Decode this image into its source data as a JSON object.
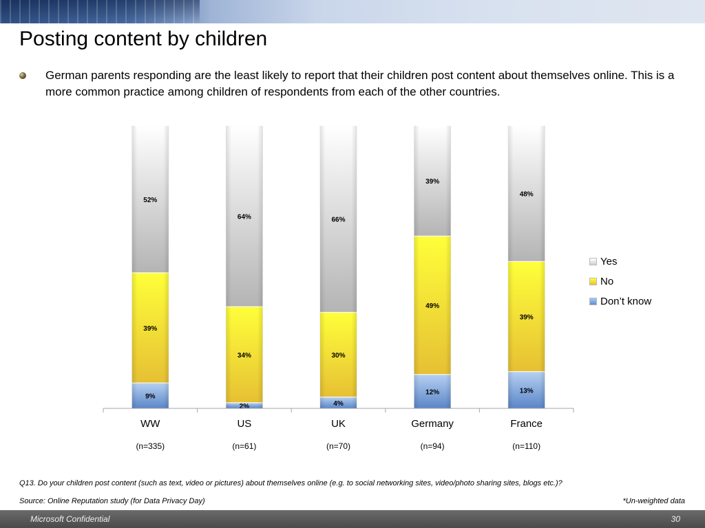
{
  "slide": {
    "title": "Posting content by children",
    "bullet": "German parents responding are the least likely to report that their children post content about themselves online. This is a more common practice among children of respondents from each of the other countries.",
    "question": "Q13. Do your children post content (such as text, video or pictures) about themselves online (e.g. to social networking sites, video/photo sharing sites, blogs etc.)?",
    "source": "Source: Online Reputation study (for Data Privacy Day)",
    "note": "*Un-weighted data",
    "footer_left": "Microsoft Confidential",
    "page_number": "30"
  },
  "chart_data": {
    "type": "bar",
    "stacked": true,
    "percent_stacked": true,
    "categories": [
      "WW",
      "US",
      "UK",
      "Germany",
      "France"
    ],
    "sample_sizes": [
      "(n=335)",
      "(n=61)",
      "(n=70)",
      "(n=94)",
      "(n=110)"
    ],
    "series": [
      {
        "name": "Don’t know",
        "values": [
          9,
          2,
          4,
          12,
          13
        ],
        "labels": [
          "9%",
          "2%",
          "4%",
          "12%",
          "13%"
        ],
        "color": "#6f9ad8"
      },
      {
        "name": "No",
        "values": [
          39,
          34,
          30,
          49,
          39
        ],
        "labels": [
          "39%",
          "34%",
          "30%",
          "49%",
          "39%"
        ],
        "color": "#f5df2a"
      },
      {
        "name": "Yes",
        "values": [
          52,
          64,
          66,
          39,
          48
        ],
        "labels": [
          "52%",
          "64%",
          "66%",
          "39%",
          "48%"
        ],
        "color": "#d8d8d8"
      }
    ],
    "legend_order": [
      "Yes",
      "No",
      "Don’t know"
    ],
    "legend_position": "right",
    "ylim": [
      0,
      100
    ],
    "grid": false
  }
}
